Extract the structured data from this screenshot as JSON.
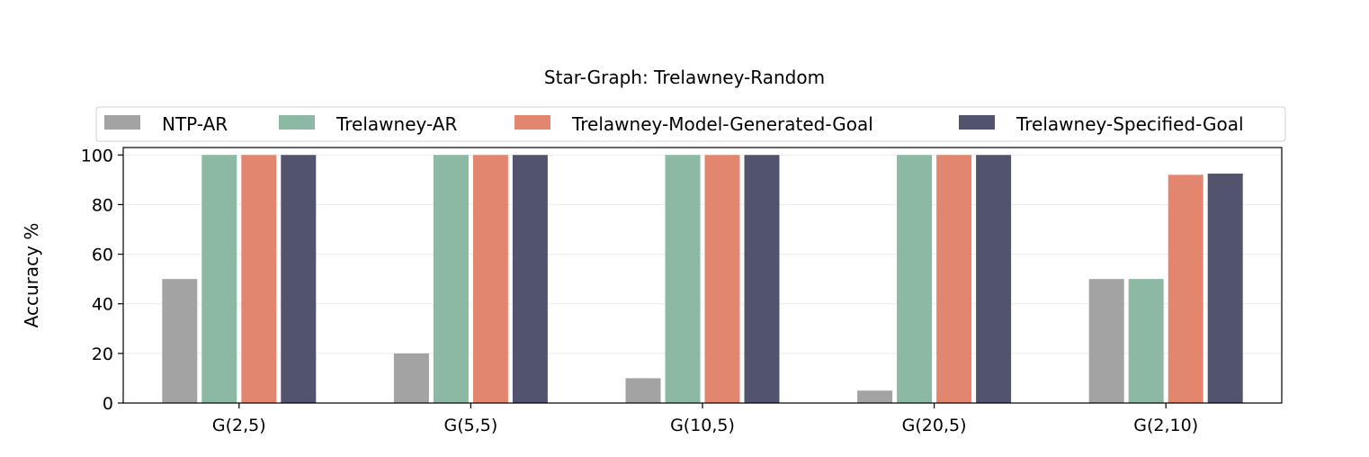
{
  "chart_data": {
    "type": "bar",
    "title": "Star-Graph: Trelawney-Random",
    "xlabel": "",
    "ylabel": "Accuracy %",
    "ylim": [
      0,
      103
    ],
    "yticks": [
      0,
      20,
      40,
      60,
      80,
      100
    ],
    "grid": "horizontal-light",
    "legend_position": "top",
    "categories": [
      "G(2,5)",
      "G(5,5)",
      "G(10,5)",
      "G(20,5)",
      "G(2,10)"
    ],
    "series": [
      {
        "name": "NTP-AR",
        "color": "#a3a3a3",
        "values": [
          50,
          20,
          10,
          5,
          50
        ]
      },
      {
        "name": "Trelawney-AR",
        "color": "#8cb9a3",
        "values": [
          100,
          100,
          100,
          100,
          50
        ]
      },
      {
        "name": "Trelawney-Model-Generated-Goal",
        "color": "#e3866f",
        "values": [
          100,
          100,
          100,
          100,
          92
        ]
      },
      {
        "name": "Trelawney-Specified-Goal",
        "color": "#52536c",
        "values": [
          100,
          100,
          100,
          100,
          92.5
        ]
      }
    ]
  }
}
